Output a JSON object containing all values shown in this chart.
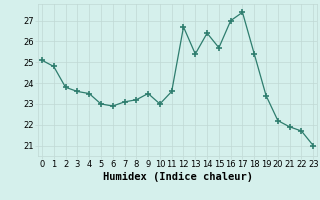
{
  "x": [
    0,
    1,
    2,
    3,
    4,
    5,
    6,
    7,
    8,
    9,
    10,
    11,
    12,
    13,
    14,
    15,
    16,
    17,
    18,
    19,
    20,
    21,
    22,
    23
  ],
  "y": [
    25.1,
    24.8,
    23.8,
    23.6,
    23.5,
    23.0,
    22.9,
    23.1,
    23.2,
    23.5,
    23.0,
    23.6,
    26.7,
    25.4,
    26.4,
    25.7,
    27.0,
    27.4,
    25.4,
    23.4,
    22.2,
    21.9,
    21.7,
    21.0
  ],
  "line_color": "#2e7d6e",
  "marker": "+",
  "marker_size": 5,
  "marker_lw": 1.2,
  "bg_color": "#d5f0ec",
  "grid_color_major": "#c0d8d4",
  "grid_color_minor": "#dce8e6",
  "xlabel": "Humidex (Indice chaleur)",
  "ylim": [
    20.5,
    27.8
  ],
  "xlim": [
    -0.3,
    23.3
  ],
  "yticks": [
    21,
    22,
    23,
    24,
    25,
    26,
    27
  ],
  "xlabel_fontsize": 7.5,
  "tick_fontsize": 6.0
}
